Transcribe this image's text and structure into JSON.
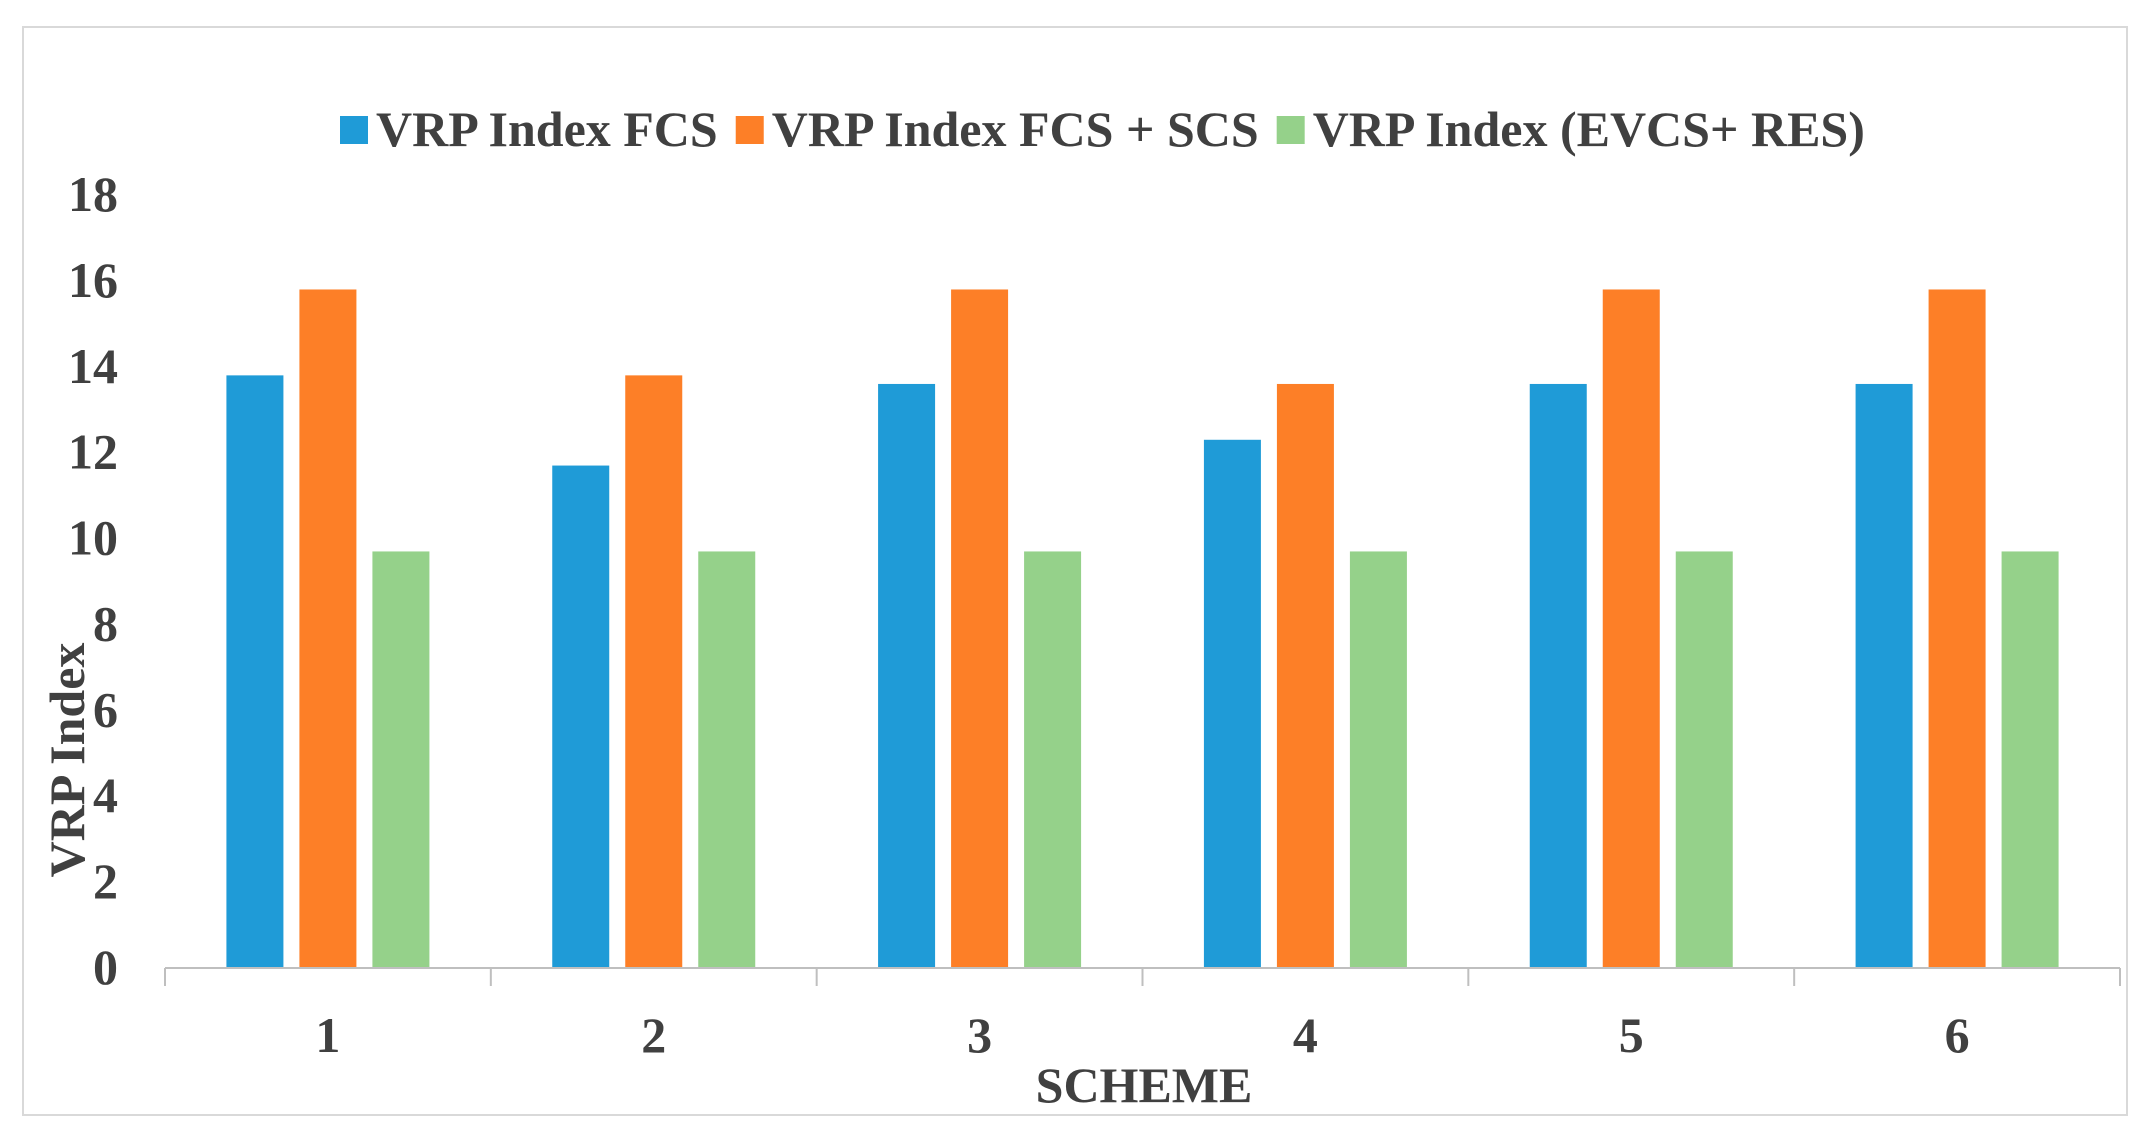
{
  "chart_data": {
    "type": "bar",
    "title": "",
    "xlabel": "SCHEME",
    "ylabel": "VRP Index",
    "categories": [
      "1",
      "2",
      "3",
      "4",
      "5",
      "6"
    ],
    "ylim": [
      0,
      18
    ],
    "yticks": [
      0,
      2,
      4,
      6,
      8,
      10,
      12,
      14,
      16,
      18
    ],
    "grid": false,
    "legend_position": "top",
    "series": [
      {
        "name": "VRP Index FCS",
        "color": "#1f9bd7",
        "values": [
          13.8,
          11.7,
          13.6,
          12.3,
          13.6,
          13.6
        ]
      },
      {
        "name": "VRP Index FCS + SCS",
        "color": "#fd7f27",
        "values": [
          15.8,
          13.8,
          15.8,
          13.6,
          15.8,
          15.8
        ]
      },
      {
        "name": "VRP Index (EVCS+ RES)",
        "color": "#95d18a",
        "values": [
          9.7,
          9.7,
          9.7,
          9.7,
          9.7,
          9.7
        ]
      }
    ]
  }
}
